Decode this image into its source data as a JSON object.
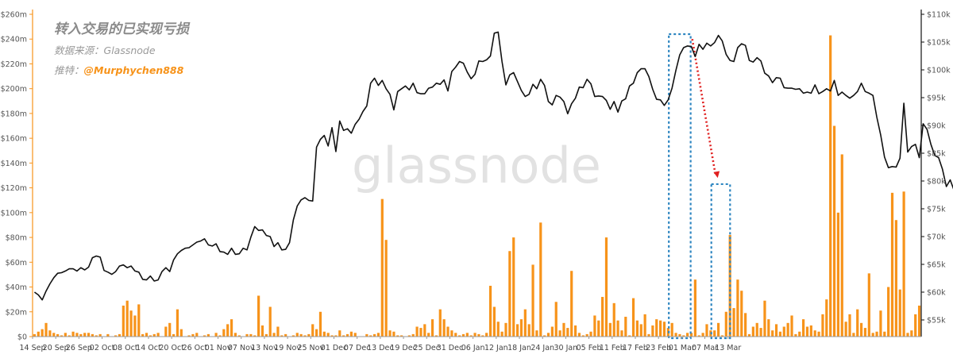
{
  "header": {
    "title": "转入交易的已实现亏损",
    "source_prefix": "数据来源：",
    "source_name": "Glassnode",
    "author_prefix": "推特：",
    "author_handle": "@Murphychen888"
  },
  "watermark": "glassnode",
  "colors": {
    "bars": "#f7931a",
    "price_line": "#111111",
    "left_axis": "#f7931a",
    "right_axis": "#111111",
    "highlight_box": "#2e86c1",
    "arrow": "#e02020",
    "handle": "#f7931a"
  },
  "chart_data": {
    "type": "bar+line",
    "title": "转入交易的已实现亏损",
    "left_axis": {
      "ticks": [
        "$0",
        "$20m",
        "$40m",
        "$60m",
        "$80m",
        "$100m",
        "$120m",
        "$140m",
        "$160m",
        "$180m",
        "$200m",
        "$220m",
        "$240m",
        "$260m"
      ],
      "range_m": [
        0,
        260
      ]
    },
    "right_axis": {
      "ticks": [
        "$55k",
        "$60k",
        "$65k",
        "$70k",
        "$75k",
        "$80k",
        "$85k",
        "$90k",
        "$95k",
        "$100k",
        "$105k",
        "$110k"
      ],
      "range_k": [
        52,
        110
      ]
    },
    "x_ticks": [
      "14 Sep",
      "20 Sep",
      "26 Sep",
      "02 Oct",
      "08 Oct",
      "14 Oct",
      "20 Oct",
      "26 Oct",
      "01 Nov",
      "07 Nov",
      "13 Nov",
      "19 Nov",
      "25 Nov",
      "01 Dec",
      "07 Dec",
      "13 Dec",
      "19 Dec",
      "25 Dec",
      "31 Dec",
      "06 Jan",
      "12 Jan",
      "18 Jan",
      "24 Jan",
      "30 Jan",
      "05 Feb",
      "11 Feb",
      "17 Feb",
      "23 Feb",
      "01 Mar",
      "07 Mar",
      "13 Mar"
    ],
    "series": [
      {
        "name": "Realized loss (bars, $m)",
        "type": "bar",
        "axis": "left",
        "values": [
          2,
          4,
          6,
          11,
          5,
          3,
          2,
          1,
          3,
          1,
          4,
          3,
          2,
          3,
          3,
          2,
          1,
          2,
          0,
          2,
          0,
          1,
          2,
          25,
          29,
          21,
          17,
          26,
          2,
          3,
          1,
          2,
          3,
          0,
          8,
          11,
          2,
          22,
          6,
          0,
          1,
          2,
          3,
          0,
          1,
          2,
          0,
          3,
          1,
          6,
          10,
          14,
          3,
          1,
          0,
          2,
          2,
          1,
          33,
          9,
          2,
          24,
          3,
          8,
          1,
          2,
          0,
          1,
          3,
          2,
          1,
          2,
          10,
          6,
          20,
          4,
          3,
          1,
          1,
          5,
          1,
          2,
          4,
          3,
          0,
          0,
          2,
          1,
          2,
          3,
          111,
          78,
          5,
          4,
          1,
          1,
          0,
          1,
          2,
          8,
          7,
          10,
          3,
          14,
          1,
          22,
          14,
          8,
          5,
          3,
          1,
          2,
          3,
          1,
          3,
          2,
          1,
          3,
          41,
          24,
          12,
          4,
          11,
          69,
          80,
          10,
          14,
          22,
          10,
          58,
          5,
          92,
          1,
          3,
          8,
          28,
          5,
          11,
          7,
          53,
          9,
          3,
          1,
          2,
          4,
          17,
          13,
          32,
          80,
          11,
          27,
          13,
          5,
          16,
          1,
          31,
          13,
          10,
          18,
          2,
          9,
          14,
          13,
          12,
          7,
          11,
          3,
          2,
          1,
          3,
          3,
          46,
          1,
          3,
          10,
          5,
          5,
          11,
          1,
          20,
          82,
          23,
          46,
          37,
          19,
          2,
          8,
          11,
          7,
          29,
          14,
          5,
          10,
          4,
          8,
          11,
          17,
          2,
          4,
          14,
          8,
          9,
          5,
          4,
          18,
          30,
          243,
          170,
          100,
          147,
          12,
          18,
          3,
          22,
          11,
          7,
          51,
          3,
          4,
          21,
          4,
          40,
          116,
          94,
          38,
          117,
          3,
          5,
          18,
          25
        ]
      },
      {
        "name": "Price (line, $k)",
        "type": "line",
        "axis": "right",
        "values": [
          60,
          59.5,
          58.6,
          60.2,
          61.5,
          62.6,
          63.4,
          63.5,
          63.8,
          64.2,
          64.2,
          63.8,
          64.4,
          64,
          64.5,
          66.2,
          66.5,
          66.3,
          63.9,
          63.6,
          63.2,
          63.7,
          64.7,
          64.9,
          64.4,
          64.7,
          63.8,
          63.6,
          62.3,
          62.2,
          62.9,
          62,
          62.2,
          63.7,
          64.4,
          63.7,
          65.8,
          66.9,
          67.5,
          67.9,
          68,
          68.5,
          69,
          69.2,
          69.6,
          68.5,
          68.3,
          68.7,
          67.3,
          67.2,
          66.8,
          67.9,
          66.8,
          66.9,
          67.9,
          67.6,
          69.9,
          71.8,
          71.1,
          71.2,
          70.2,
          70,
          68.2,
          68.9,
          67.6,
          67.7,
          68.9,
          73,
          75.5,
          76.6,
          77,
          76.5,
          76.4,
          86.1,
          87.5,
          88.2,
          86.3,
          89.6,
          85.3,
          90.8,
          89.1,
          89.4,
          88.6,
          90.2,
          91.1,
          92.5,
          93.5,
          97.6,
          98.5,
          97.2,
          98.1,
          96.6,
          95.6,
          92.8,
          96.1,
          96.6,
          97.1,
          96.4,
          97.6,
          95.9,
          95.7,
          95.7,
          96.7,
          96.9,
          97.6,
          97.4,
          98.2,
          96.2,
          99.7,
          100.5,
          101.5,
          101.2,
          99.6,
          98.4,
          99.2,
          101.6,
          101.5,
          101.8,
          102.5,
          106.6,
          106.8,
          101.5,
          97.3,
          99.1,
          99.5,
          97.9,
          96.3,
          95.2,
          95.6,
          97.4,
          96.6,
          98.3,
          97.2,
          94.3,
          93.7,
          95.4,
          95.1,
          94.3,
          92.1,
          93.9,
          94.9,
          96.9,
          96.8,
          98.3,
          97.5,
          95.2,
          95.3,
          95.2,
          94.5,
          92.9,
          94.3,
          92.4,
          94.4,
          94.8,
          97.1,
          97.6,
          99.5,
          100.2,
          100.2,
          98.8,
          96.5,
          94.7,
          94.6,
          93.6,
          94.6,
          96.7,
          99.9,
          102.7,
          104,
          104.3,
          104.2,
          102.4,
          104.6,
          103.7,
          104.8,
          104.3,
          104.9,
          106.2,
          105.2,
          102.8,
          101.7,
          101.5,
          104,
          104.7,
          104.4,
          101.7,
          101.4,
          102.2,
          101.6,
          99.4,
          98.9,
          97.7,
          98.6,
          98.5,
          96.8,
          96.7,
          96.7,
          96.5,
          96.6,
          95.8,
          96,
          95.8,
          97.3,
          95.7,
          96.1,
          96.6,
          96.2,
          98.1,
          95.4,
          96,
          95.4,
          94.9,
          95.4,
          96.1,
          97.6,
          96.1,
          95.8,
          95.4,
          91.5,
          88.3,
          84.3,
          82.4,
          82.6,
          82.5,
          84.1,
          94,
          85.2,
          86.2,
          86.6,
          84.2,
          90.3,
          89.3,
          86.6,
          84.6,
          84.2,
          82.1,
          79,
          80.2,
          78.3,
          80.7,
          82,
          82.6,
          81.1,
          82.6,
          83.8,
          83.9,
          83.7,
          82.5,
          83.2,
          82.5
        ]
      }
    ],
    "annotations": [
      {
        "type": "dashed-box",
        "color": "#2e86c1",
        "period": "23 Feb – 01 Mar"
      },
      {
        "type": "dashed-box",
        "color": "#2e86c1",
        "period": "07 Mar – 13 Mar"
      },
      {
        "type": "dotted-arrow",
        "color": "#e02020",
        "direction": "down-right"
      }
    ],
    "grid": false,
    "legend": "none"
  }
}
